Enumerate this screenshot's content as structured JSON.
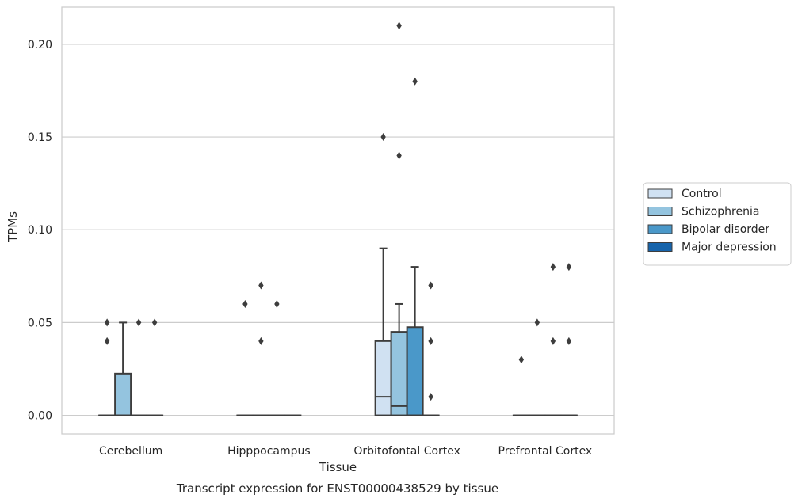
{
  "chart_data": {
    "type": "box",
    "caption": "Transcript expression for ENST00000438529 by tissue",
    "xlabel": "Tissue",
    "ylabel": "TPMs",
    "ylim": [
      -0.01,
      0.22
    ],
    "yticks": [
      0.0,
      0.05,
      0.1,
      0.15,
      0.2
    ],
    "ytick_labels": [
      "0.00",
      "0.05",
      "0.10",
      "0.15",
      "0.20"
    ],
    "grid": "horizontal",
    "legend_position": "right",
    "categories": [
      "Cerebellum",
      "Hipppocampus",
      "Orbitofontal Cortex",
      "Prefrontal Cortex"
    ],
    "series": [
      {
        "name": "Control",
        "color": "#d0e1f2",
        "boxes": [
          {
            "q1": 0,
            "median": 0,
            "q3": 0,
            "whislo": 0,
            "whishi": 0,
            "fliers": [
              0.04,
              0.05
            ]
          },
          {
            "q1": 0,
            "median": 0,
            "q3": 0,
            "whislo": 0,
            "whishi": 0,
            "fliers": [
              0.06
            ]
          },
          {
            "q1": 0,
            "median": 0.01,
            "q3": 0.04,
            "whislo": 0,
            "whishi": 0.09,
            "fliers": [
              0.15
            ]
          },
          {
            "q1": 0,
            "median": 0,
            "q3": 0,
            "whislo": 0,
            "whishi": 0,
            "fliers": [
              0.03
            ]
          }
        ]
      },
      {
        "name": "Schizophrenia",
        "color": "#94c4df",
        "boxes": [
          {
            "q1": 0,
            "median": 0,
            "q3": 0.0225,
            "whislo": 0,
            "whishi": 0.05,
            "fliers": []
          },
          {
            "q1": 0,
            "median": 0,
            "q3": 0,
            "whislo": 0,
            "whishi": 0,
            "fliers": [
              0.04,
              0.07
            ]
          },
          {
            "q1": 0,
            "median": 0.005,
            "q3": 0.045,
            "whislo": 0,
            "whishi": 0.06,
            "fliers": [
              0.14,
              0.21
            ]
          },
          {
            "q1": 0,
            "median": 0,
            "q3": 0,
            "whislo": 0,
            "whishi": 0,
            "fliers": [
              0.05
            ]
          }
        ]
      },
      {
        "name": "Bipolar disorder",
        "color": "#4a98c9",
        "boxes": [
          {
            "q1": 0,
            "median": 0,
            "q3": 0,
            "whislo": 0,
            "whishi": 0,
            "fliers": [
              0.05
            ]
          },
          {
            "q1": 0,
            "median": 0,
            "q3": 0,
            "whislo": 0,
            "whishi": 0,
            "fliers": [
              0.06
            ]
          },
          {
            "q1": 0,
            "median": 0,
            "q3": 0.0475,
            "whislo": 0,
            "whishi": 0.08,
            "fliers": [
              0.18
            ]
          },
          {
            "q1": 0,
            "median": 0,
            "q3": 0,
            "whislo": 0,
            "whishi": 0,
            "fliers": [
              0.04,
              0.08
            ]
          }
        ]
      },
      {
        "name": "Major depression",
        "color": "#1764ab",
        "boxes": [
          {
            "q1": 0,
            "median": 0,
            "q3": 0,
            "whislo": 0,
            "whishi": 0,
            "fliers": [
              0.05
            ]
          },
          {
            "q1": 0,
            "median": 0,
            "q3": 0,
            "whislo": 0,
            "whishi": 0,
            "fliers": []
          },
          {
            "q1": 0,
            "median": 0,
            "q3": 0,
            "whislo": 0,
            "whishi": 0,
            "fliers": [
              0.01,
              0.04,
              0.07
            ]
          },
          {
            "q1": 0,
            "median": 0,
            "q3": 0,
            "whislo": 0,
            "whishi": 0,
            "fliers": [
              0.04,
              0.08
            ]
          }
        ]
      }
    ]
  }
}
